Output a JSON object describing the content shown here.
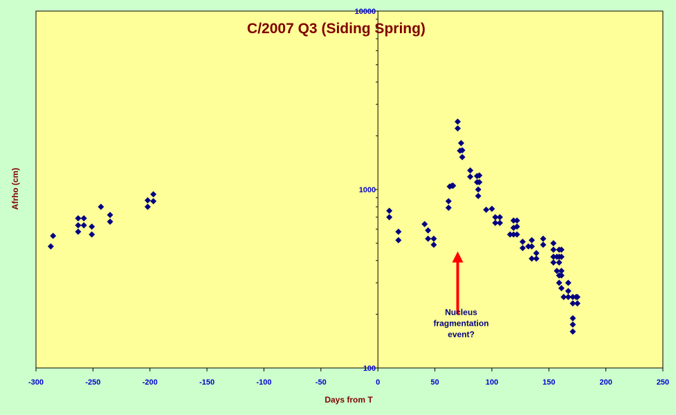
{
  "chart_data": {
    "type": "scatter",
    "title": "C/2007 Q3 (Siding Spring)",
    "xlabel": "Days from T",
    "ylabel": "Afrho (cm)",
    "xlim": [
      -300,
      250
    ],
    "ylim": [
      100,
      10000
    ],
    "yscale": "log",
    "x_ticks": [
      -300,
      -250,
      -200,
      -150,
      -100,
      -50,
      0,
      50,
      100,
      150,
      200,
      250
    ],
    "y_ticks": [
      100,
      1000,
      10000
    ],
    "grid": false,
    "legend": "none",
    "colors": {
      "background": "#ccffcc",
      "plot_area": "#ffff99",
      "marker": "#000080",
      "title": "#800000",
      "ticks": "#0000cc",
      "arrow": "#ff0000"
    },
    "annotation": {
      "lines": [
        "Nucleus",
        "fragmentation",
        "event?"
      ],
      "arrow_x": 70,
      "arrow_from_y": 200,
      "arrow_to_y": 450
    },
    "points": [
      [
        -287,
        480
      ],
      [
        -285,
        550
      ],
      [
        -263,
        580
      ],
      [
        -263,
        630
      ],
      [
        -263,
        690
      ],
      [
        -258,
        630
      ],
      [
        -258,
        690
      ],
      [
        -251,
        560
      ],
      [
        -251,
        620
      ],
      [
        -243,
        800
      ],
      [
        -235,
        660
      ],
      [
        -235,
        720
      ],
      [
        -202,
        800
      ],
      [
        -202,
        870
      ],
      [
        -197,
        860
      ],
      [
        -197,
        940
      ],
      [
        10,
        700
      ],
      [
        10,
        760
      ],
      [
        18,
        520
      ],
      [
        18,
        580
      ],
      [
        41,
        640
      ],
      [
        44,
        530
      ],
      [
        44,
        590
      ],
      [
        49,
        490
      ],
      [
        49,
        530
      ],
      [
        62,
        790
      ],
      [
        62,
        860
      ],
      [
        63,
        1040
      ],
      [
        65,
        1050
      ],
      [
        66,
        1050
      ],
      [
        70,
        2200
      ],
      [
        70,
        2400
      ],
      [
        72,
        1650
      ],
      [
        73,
        1820
      ],
      [
        74,
        1520
      ],
      [
        74,
        1660
      ],
      [
        81,
        1180
      ],
      [
        81,
        1280
      ],
      [
        87,
        1100
      ],
      [
        87,
        1190
      ],
      [
        88,
        920
      ],
      [
        88,
        1000
      ],
      [
        89,
        1100
      ],
      [
        89,
        1200
      ],
      [
        95,
        770
      ],
      [
        100,
        780
      ],
      [
        103,
        650
      ],
      [
        103,
        700
      ],
      [
        107,
        650
      ],
      [
        107,
        700
      ],
      [
        116,
        560
      ],
      [
        119,
        560
      ],
      [
        119,
        610
      ],
      [
        119,
        670
      ],
      [
        122,
        560
      ],
      [
        122,
        620
      ],
      [
        122,
        670
      ],
      [
        127,
        470
      ],
      [
        127,
        510
      ],
      [
        132,
        480
      ],
      [
        135,
        410
      ],
      [
        135,
        480
      ],
      [
        135,
        520
      ],
      [
        139,
        410
      ],
      [
        139,
        440
      ],
      [
        145,
        490
      ],
      [
        145,
        530
      ],
      [
        154,
        390
      ],
      [
        154,
        420
      ],
      [
        154,
        460
      ],
      [
        154,
        500
      ],
      [
        157,
        350
      ],
      [
        157,
        420
      ],
      [
        159,
        300
      ],
      [
        159,
        330
      ],
      [
        159,
        390
      ],
      [
        159,
        420
      ],
      [
        159,
        460
      ],
      [
        161,
        280
      ],
      [
        161,
        330
      ],
      [
        161,
        350
      ],
      [
        161,
        420
      ],
      [
        161,
        460
      ],
      [
        163,
        250
      ],
      [
        167,
        250
      ],
      [
        167,
        270
      ],
      [
        167,
        300
      ],
      [
        171,
        160
      ],
      [
        171,
        175
      ],
      [
        171,
        190
      ],
      [
        171,
        230
      ],
      [
        171,
        250
      ],
      [
        174,
        250
      ],
      [
        175,
        230
      ],
      [
        175,
        250
      ]
    ]
  }
}
